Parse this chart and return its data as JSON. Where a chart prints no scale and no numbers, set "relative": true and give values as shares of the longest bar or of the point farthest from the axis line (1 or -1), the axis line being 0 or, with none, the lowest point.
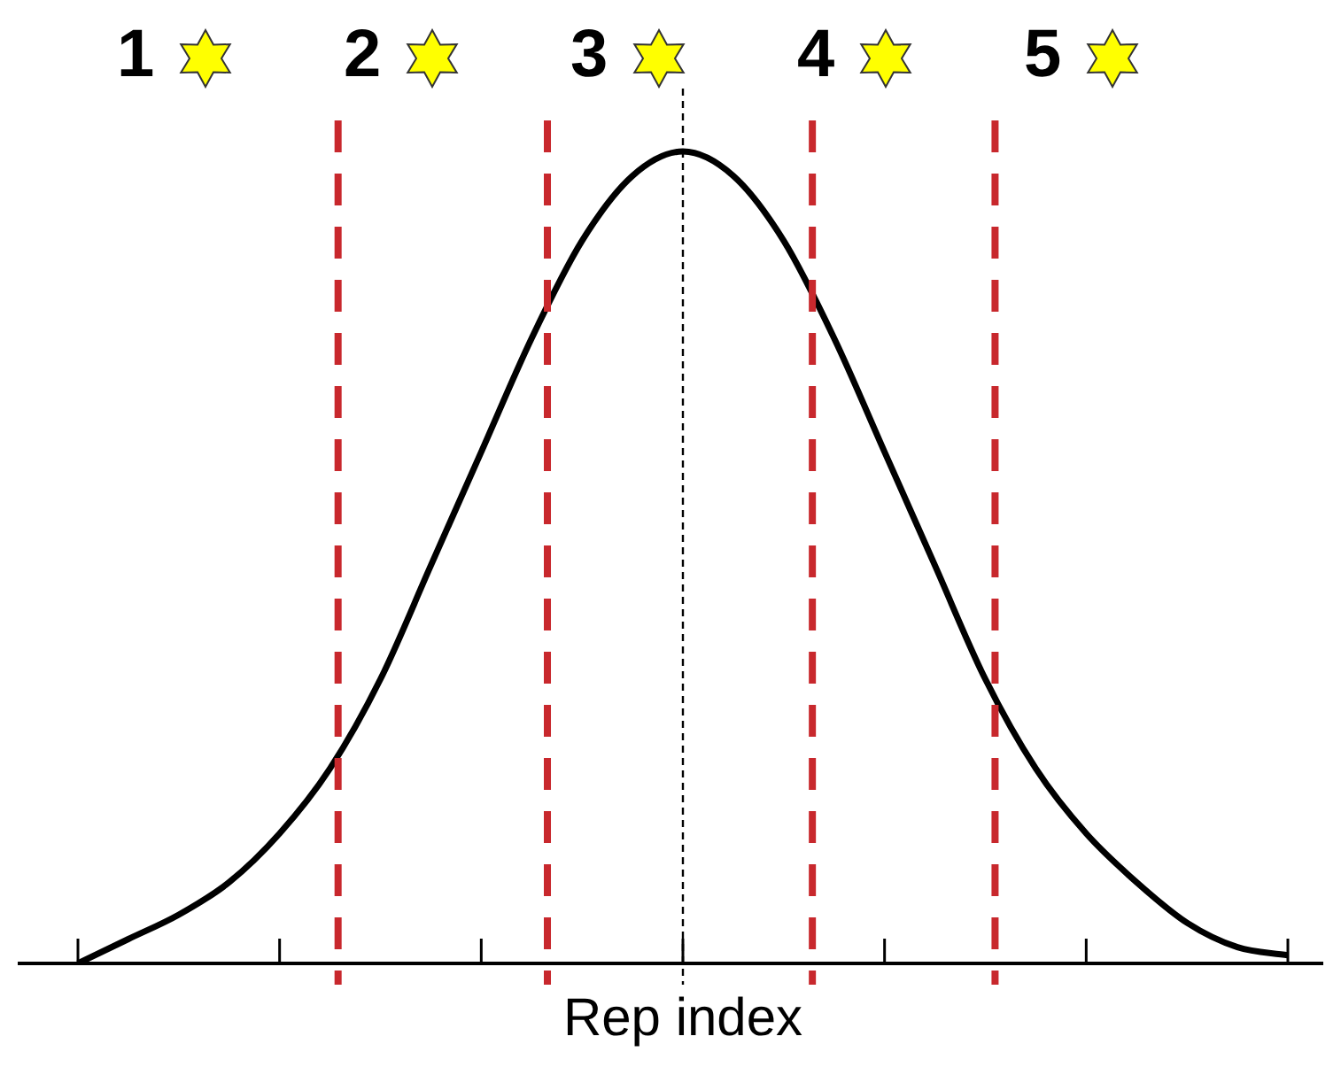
{
  "chart_data": {
    "type": "line",
    "relative": true,
    "xlabel": "Rep index",
    "annotations": [
      "1",
      "2",
      "3",
      "4",
      "5"
    ],
    "categories": [
      null,
      null,
      null,
      null,
      null,
      null,
      null,
      null,
      null,
      null,
      null,
      null,
      null,
      null,
      null,
      null,
      null,
      null,
      null,
      null,
      null,
      null,
      null,
      null,
      null
    ],
    "series": [
      {
        "color": "#000000",
        "values": [
          0.0,
          0.03,
          0.06,
          0.1,
          0.16,
          0.24,
          0.35,
          0.49,
          0.63,
          0.77,
          0.89,
          0.97,
          1,
          0.97,
          0.89,
          0.77,
          0.63,
          0.49,
          0.35,
          0.24,
          0.16,
          0.1,
          0.05,
          0.02,
          0.01
        ]
      }
    ],
    "grid": false,
    "legend": false,
    "marker": "none",
    "line_style": "solid"
  }
}
